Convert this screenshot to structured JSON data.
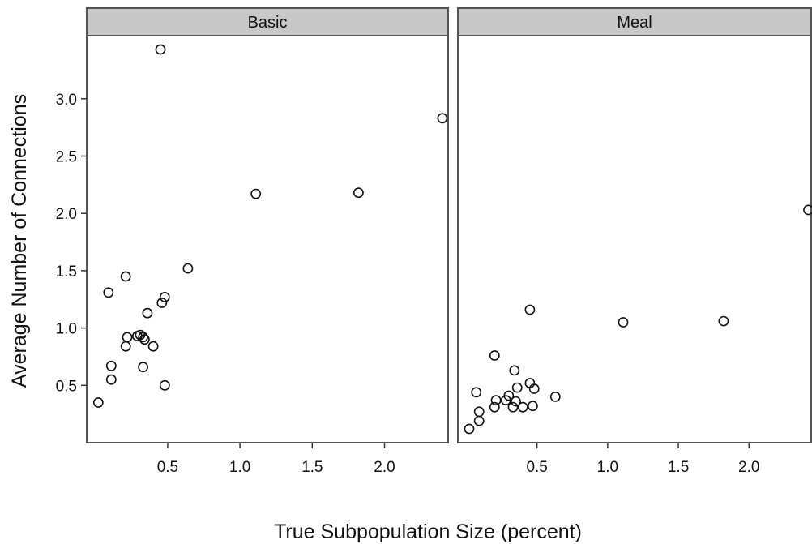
{
  "chart_data": {
    "type": "scatter",
    "xlabel": "True Subpopulation Size (percent)",
    "ylabel": "Average Number of Connections",
    "x_ticks": [
      "0.5",
      "1.0",
      "1.5",
      "2.0"
    ],
    "y_ticks": [
      "0.5",
      "1.0",
      "1.5",
      "2.0",
      "2.5",
      "3.0"
    ],
    "xlim": [
      -0.06,
      2.44
    ],
    "ylim": [
      0.0,
      3.55
    ],
    "grid": false,
    "panels": [
      {
        "name": "Basic",
        "points": [
          {
            "x": 0.02,
            "y": 0.35
          },
          {
            "x": 0.09,
            "y": 1.31
          },
          {
            "x": 0.11,
            "y": 0.67
          },
          {
            "x": 0.11,
            "y": 0.55
          },
          {
            "x": 0.21,
            "y": 1.45
          },
          {
            "x": 0.21,
            "y": 0.84
          },
          {
            "x": 0.22,
            "y": 0.92
          },
          {
            "x": 0.29,
            "y": 0.93
          },
          {
            "x": 0.31,
            "y": 0.94
          },
          {
            "x": 0.33,
            "y": 0.92
          },
          {
            "x": 0.34,
            "y": 0.9
          },
          {
            "x": 0.33,
            "y": 0.66
          },
          {
            "x": 0.36,
            "y": 1.13
          },
          {
            "x": 0.4,
            "y": 0.84
          },
          {
            "x": 0.45,
            "y": 3.43
          },
          {
            "x": 0.46,
            "y": 1.22
          },
          {
            "x": 0.48,
            "y": 1.27
          },
          {
            "x": 0.48,
            "y": 0.5
          },
          {
            "x": 0.64,
            "y": 1.52
          },
          {
            "x": 1.11,
            "y": 2.17
          },
          {
            "x": 1.82,
            "y": 2.18
          },
          {
            "x": 2.4,
            "y": 2.83
          }
        ]
      },
      {
        "name": "Meal",
        "points": [
          {
            "x": 0.02,
            "y": 0.12
          },
          {
            "x": 0.07,
            "y": 0.44
          },
          {
            "x": 0.09,
            "y": 0.27
          },
          {
            "x": 0.09,
            "y": 0.19
          },
          {
            "x": 0.2,
            "y": 0.76
          },
          {
            "x": 0.2,
            "y": 0.31
          },
          {
            "x": 0.21,
            "y": 0.37
          },
          {
            "x": 0.28,
            "y": 0.37
          },
          {
            "x": 0.3,
            "y": 0.41
          },
          {
            "x": 0.33,
            "y": 0.31
          },
          {
            "x": 0.34,
            "y": 0.63
          },
          {
            "x": 0.35,
            "y": 0.36
          },
          {
            "x": 0.36,
            "y": 0.48
          },
          {
            "x": 0.4,
            "y": 0.31
          },
          {
            "x": 0.45,
            "y": 1.16
          },
          {
            "x": 0.45,
            "y": 0.52
          },
          {
            "x": 0.47,
            "y": 0.32
          },
          {
            "x": 0.48,
            "y": 0.47
          },
          {
            "x": 0.63,
            "y": 0.4
          },
          {
            "x": 1.11,
            "y": 1.05
          },
          {
            "x": 1.82,
            "y": 1.06
          },
          {
            "x": 2.42,
            "y": 2.03
          }
        ]
      }
    ]
  }
}
